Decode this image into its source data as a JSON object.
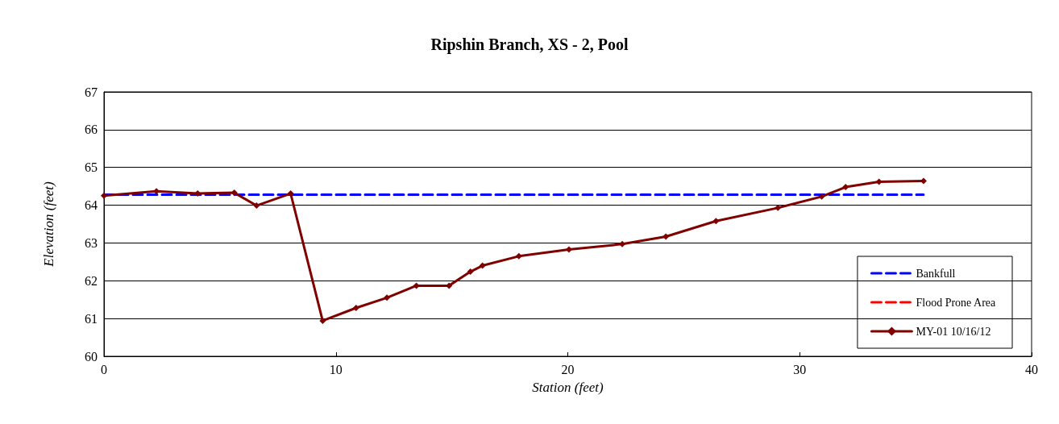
{
  "chart_data": {
    "type": "line",
    "title": "Ripshin Branch, XS - 2, Pool",
    "xlabel": "Station (feet)",
    "ylabel": "Elevation (feet)",
    "xlim": [
      0,
      40
    ],
    "xticks": [
      0,
      10,
      20,
      30,
      40
    ],
    "ylim": [
      60,
      67
    ],
    "yticks": [
      60,
      61,
      62,
      63,
      64,
      65,
      66,
      67
    ],
    "grid": "y",
    "legend": "bottom right",
    "series": [
      {
        "name": "Bankfull",
        "color": "#0000ff",
        "line_style": "dashed",
        "marker": "none",
        "x": [
          0,
          35.34
        ],
        "values": [
          64.28,
          64.28
        ]
      },
      {
        "name": "Flood Prone Area",
        "color": "#ff0000",
        "line_style": "dashed",
        "marker": "none"
      },
      {
        "name": "MY-01 10/16/12",
        "color": "#800000",
        "line_style": "solid",
        "marker": "diamond",
        "x": [
          0,
          2.26,
          4.04,
          5.62,
          6.58,
          8.05,
          9.43,
          10.87,
          12.2,
          13.47,
          14.88,
          15.8,
          16.32,
          17.89,
          20.05,
          22.35,
          24.23,
          26.39,
          29.06,
          30.95,
          31.98,
          33.42,
          35.34
        ],
        "values": [
          64.25,
          64.37,
          64.31,
          64.33,
          63.99,
          64.31,
          60.94,
          61.28,
          61.55,
          61.87,
          61.87,
          62.24,
          62.4,
          62.65,
          62.83,
          62.97,
          63.17,
          63.58,
          63.93,
          64.23,
          64.48,
          64.62,
          64.64
        ]
      }
    ]
  }
}
